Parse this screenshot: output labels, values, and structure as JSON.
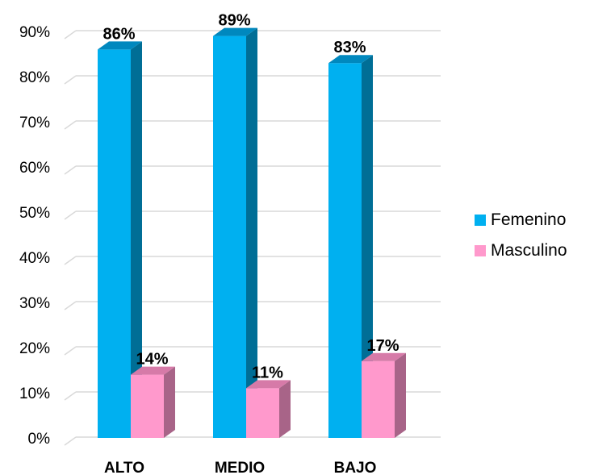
{
  "chart_data": {
    "type": "bar",
    "categories": [
      "ALTO",
      "MEDIO",
      "BAJO"
    ],
    "series": [
      {
        "name": "Femenino",
        "values": [
          86,
          89,
          83
        ],
        "labels": [
          "86%",
          "89%",
          "83%"
        ],
        "color": "#00B0F0",
        "side_color": "#006E96",
        "top_color": "#0088BE"
      },
      {
        "name": "Masculino",
        "values": [
          14,
          11,
          17
        ],
        "labels": [
          "14%",
          "11%",
          "17%"
        ],
        "color": "#FF99CC",
        "side_color": "#A86488",
        "top_color": "#D67AA8"
      }
    ],
    "y_ticks": [
      "0%",
      "10%",
      "20%",
      "30%",
      "40%",
      "50%",
      "60%",
      "70%",
      "80%",
      "90%"
    ],
    "ylim": [
      0,
      90
    ],
    "grid": true,
    "legend_position": "right",
    "gridline_color": "#D9D9D9"
  }
}
